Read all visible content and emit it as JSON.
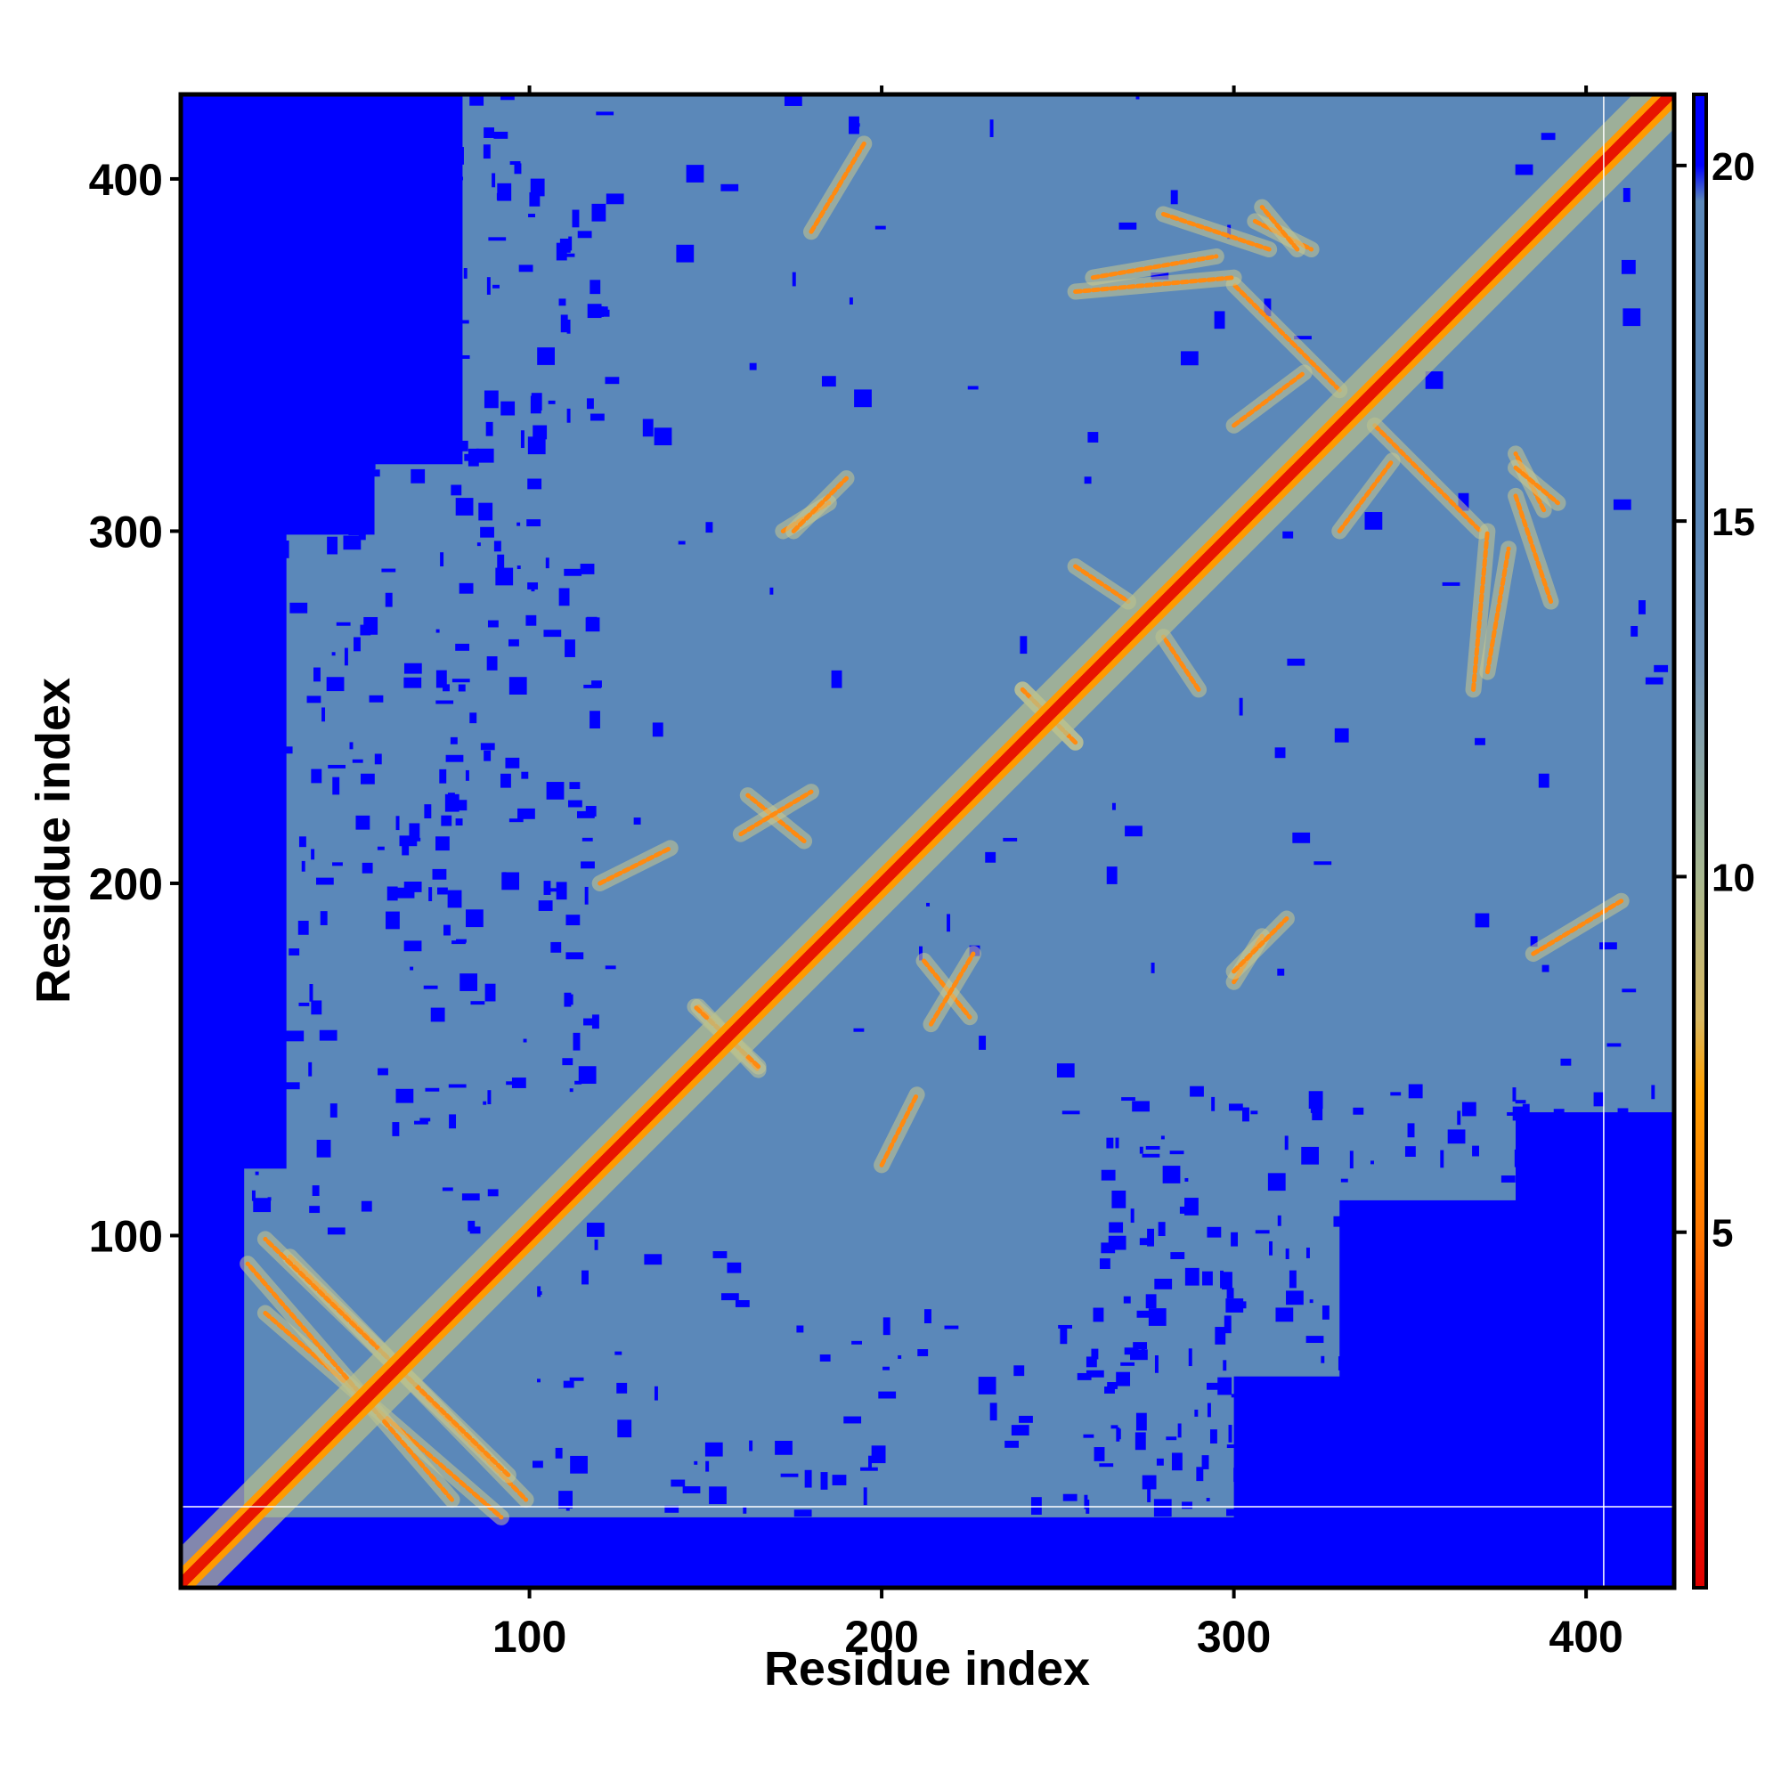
{
  "chart_data": {
    "type": "heatmap",
    "title": "",
    "xlabel": "Residue index",
    "ylabel": "Residue index",
    "n_residues": 424,
    "xlim": [
      1,
      424
    ],
    "ylim": [
      1,
      424
    ],
    "x_ticks": [
      100,
      200,
      300,
      400
    ],
    "y_ticks": [
      100,
      200,
      300,
      400
    ],
    "x_tick_labels": [
      "100",
      "200",
      "300",
      "400"
    ],
    "y_tick_labels": [
      "100",
      "200",
      "300",
      "400"
    ],
    "colorbar": {
      "range": [
        0,
        21
      ],
      "ticks": [
        5,
        10,
        15,
        20
      ],
      "tick_labels": [
        "5",
        "10",
        "15",
        "20"
      ],
      "stops": [
        {
          "value": 0,
          "color": "#e00000"
        },
        {
          "value": 3,
          "color": "#ff3300"
        },
        {
          "value": 5,
          "color": "#ff7700"
        },
        {
          "value": 7,
          "color": "#ffa000"
        },
        {
          "value": 8,
          "color": "#d9b860"
        },
        {
          "value": 10,
          "color": "#a8b890"
        },
        {
          "value": 13,
          "color": "#6f93b8"
        },
        {
          "value": 15,
          "color": "#5b88b9"
        },
        {
          "value": 19.5,
          "color": "#5b88b9"
        },
        {
          "value": 20,
          "color": "#0000ff"
        },
        {
          "value": 21,
          "color": "#0000ff"
        }
      ]
    },
    "background_color": "#5b88b9",
    "far_color": "#0000ff",
    "diagonal_color": "#e81400",
    "gap_lines_at_residue": [
      405,
      23
    ],
    "contact_features": [
      {
        "type": "antiparallel",
        "from": [
          32,
          94
        ],
        "to": [
          99,
          25
        ]
      },
      {
        "type": "antiparallel",
        "from": [
          25,
          78
        ],
        "to": [
          92,
          20
        ]
      },
      {
        "type": "antiparallel",
        "from": [
          148,
          165
        ],
        "to": [
          165,
          147
        ]
      },
      {
        "type": "antiparallel",
        "from": [
          212,
          178
        ],
        "to": [
          225,
          162
        ]
      },
      {
        "type": "antiparallel",
        "from": [
          240,
          255
        ],
        "to": [
          255,
          240
        ]
      },
      {
        "type": "antiparallel",
        "from": [
          160,
          214
        ],
        "to": [
          180,
          226
        ]
      },
      {
        "type": "antiparallel",
        "from": [
          306,
          388
        ],
        "to": [
          322,
          380
        ]
      },
      {
        "type": "antiparallel",
        "from": [
          380,
          318
        ],
        "to": [
          392,
          308
        ]
      },
      {
        "type": "parallel",
        "from": [
          172,
          300
        ],
        "to": [
          185,
          308
        ]
      },
      {
        "type": "parallel",
        "from": [
          280,
          390
        ],
        "to": [
          310,
          380
        ]
      },
      {
        "type": "parallel",
        "from": [
          340,
          330
        ],
        "to": [
          370,
          300
        ]
      },
      {
        "type": "parallel",
        "from": [
          300,
          175
        ],
        "to": [
          315,
          190
        ]
      },
      {
        "type": "parallel",
        "from": [
          120,
          200
        ],
        "to": [
          140,
          210
        ]
      },
      {
        "type": "parallel",
        "from": [
          255,
          290
        ],
        "to": [
          270,
          280
        ]
      },
      {
        "type": "parallel",
        "from": [
          372,
          260
        ],
        "to": [
          378,
          295
        ]
      },
      {
        "type": "parallel",
        "from": [
          180,
          385
        ],
        "to": [
          195,
          410
        ]
      },
      {
        "type": "parallel",
        "from": [
          255,
          368
        ],
        "to": [
          300,
          372
        ]
      },
      {
        "type": "parallel",
        "from": [
          330,
          300
        ],
        "to": [
          345,
          320
        ]
      }
    ]
  }
}
